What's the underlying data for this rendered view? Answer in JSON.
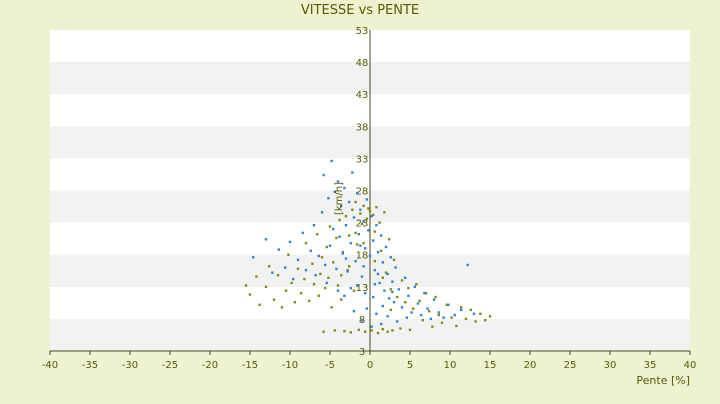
{
  "chart_data": {
    "type": "scatter",
    "title": "VITESSE vs PENTE",
    "xlabel": "Pente [%]",
    "ylabel": "[km/h]",
    "xlim": [
      -40,
      40
    ],
    "ylim": [
      3,
      53
    ],
    "x_ticks": [
      -40,
      -35,
      -30,
      -25,
      -20,
      -15,
      -10,
      -5,
      0,
      5,
      10,
      15,
      20,
      25,
      30,
      35,
      40
    ],
    "y_ticks": [
      3,
      8,
      13,
      18,
      23,
      28,
      33,
      38,
      43,
      48,
      53
    ],
    "grid": "horizontal bands",
    "colors": {
      "background": "#eef2d0",
      "plot_band_light": "#ffffff",
      "plot_band_dark": "#f2f2f2",
      "text": "#5a5a00",
      "axis": "#4a4a1a",
      "series_blue": "#2f86d6",
      "series_olive": "#8a8a10"
    },
    "series": [
      {
        "color": "#8a8a10",
        "marker": "dot",
        "points": [
          [
            -15.5,
            13.2
          ],
          [
            -15.0,
            11.8
          ],
          [
            -14.2,
            14.6
          ],
          [
            -13.8,
            10.2
          ],
          [
            -13.0,
            13.0
          ],
          [
            -12.6,
            16.2
          ],
          [
            -12.0,
            11.0
          ],
          [
            -11.5,
            14.8
          ],
          [
            -11.0,
            9.8
          ],
          [
            -10.5,
            12.4
          ],
          [
            -10.2,
            18.0
          ],
          [
            -9.8,
            13.6
          ],
          [
            -9.4,
            10.6
          ],
          [
            -9.0,
            15.8
          ],
          [
            -8.6,
            12.0
          ],
          [
            -8.2,
            14.2
          ],
          [
            -8.0,
            19.8
          ],
          [
            -7.6,
            10.8
          ],
          [
            -7.2,
            16.6
          ],
          [
            -7.0,
            13.4
          ],
          [
            -6.6,
            21.2
          ],
          [
            -6.4,
            11.6
          ],
          [
            -6.2,
            15.0
          ],
          [
            -6.0,
            17.6
          ],
          [
            -5.8,
            6.0
          ],
          [
            -5.6,
            12.8
          ],
          [
            -5.4,
            19.2
          ],
          [
            -5.2,
            14.4
          ],
          [
            -5.0,
            22.4
          ],
          [
            -4.8,
            9.8
          ],
          [
            -4.6,
            16.8
          ],
          [
            -4.4,
            6.2
          ],
          [
            -4.2,
            20.6
          ],
          [
            -4.0,
            13.2
          ],
          [
            -3.8,
            23.4
          ],
          [
            -3.6,
            11.0
          ],
          [
            -3.4,
            18.4
          ],
          [
            -3.2,
            6.1
          ],
          [
            -3.0,
            24.0
          ],
          [
            -2.8,
            15.6
          ],
          [
            -2.6,
            21.0
          ],
          [
            -2.4,
            5.9
          ],
          [
            -2.2,
            25.0
          ],
          [
            -2.0,
            12.4
          ],
          [
            -1.8,
            26.2
          ],
          [
            -1.6,
            19.6
          ],
          [
            -1.4,
            6.3
          ],
          [
            -1.2,
            24.4
          ],
          [
            -1.0,
            22.8
          ],
          [
            -0.8,
            25.6
          ],
          [
            -0.6,
            6.0
          ],
          [
            -0.4,
            23.6
          ],
          [
            -0.2,
            25.2
          ],
          [
            0.0,
            24.8
          ],
          [
            0.2,
            6.2
          ],
          [
            0.4,
            24.2
          ],
          [
            0.6,
            21.6
          ],
          [
            0.8,
            25.4
          ],
          [
            1.0,
            5.8
          ],
          [
            1.2,
            23.0
          ],
          [
            1.4,
            18.6
          ],
          [
            1.6,
            6.4
          ],
          [
            1.8,
            24.6
          ],
          [
            2.0,
            15.2
          ],
          [
            2.2,
            6.0
          ],
          [
            2.4,
            20.4
          ],
          [
            2.6,
            12.6
          ],
          [
            2.8,
            6.2
          ],
          [
            3.0,
            17.2
          ],
          [
            3.4,
            11.4
          ],
          [
            3.8,
            6.5
          ],
          [
            4.0,
            14.0
          ],
          [
            4.4,
            10.6
          ],
          [
            4.8,
            12.8
          ],
          [
            5.0,
            6.3
          ],
          [
            5.4,
            9.6
          ],
          [
            5.8,
            13.4
          ],
          [
            6.2,
            10.8
          ],
          [
            6.6,
            7.8
          ],
          [
            7.0,
            12.0
          ],
          [
            7.4,
            9.2
          ],
          [
            7.8,
            6.8
          ],
          [
            8.2,
            11.4
          ],
          [
            8.6,
            8.6
          ],
          [
            9.0,
            7.4
          ],
          [
            9.6,
            10.2
          ],
          [
            10.2,
            8.2
          ],
          [
            10.8,
            6.9
          ],
          [
            11.4,
            9.8
          ],
          [
            12.0,
            8.0
          ],
          [
            12.6,
            9.4
          ],
          [
            13.2,
            7.6
          ],
          [
            13.8,
            8.8
          ],
          [
            14.4,
            7.8
          ],
          [
            15.0,
            8.4
          ],
          [
            -1.8,
            21.4
          ],
          [
            -0.8,
            19.8
          ],
          [
            0.6,
            17.0
          ],
          [
            1.6,
            14.4
          ],
          [
            -2.6,
            16.2
          ],
          [
            2.6,
            9.4
          ],
          [
            -3.6,
            14.8
          ]
        ]
      },
      {
        "color": "#2f86d6",
        "marker": "dot",
        "points": [
          [
            -14.6,
            17.6
          ],
          [
            -13.0,
            20.4
          ],
          [
            -12.2,
            15.2
          ],
          [
            -11.4,
            18.8
          ],
          [
            -10.6,
            16.0
          ],
          [
            -10.0,
            20.0
          ],
          [
            -9.6,
            14.2
          ],
          [
            -9.0,
            17.2
          ],
          [
            -8.4,
            21.4
          ],
          [
            -8.0,
            15.6
          ],
          [
            -7.4,
            18.6
          ],
          [
            -7.0,
            22.6
          ],
          [
            -6.8,
            14.8
          ],
          [
            -6.4,
            17.8
          ],
          [
            -6.0,
            24.6
          ],
          [
            -5.8,
            30.4
          ],
          [
            -5.6,
            16.4
          ],
          [
            -5.2,
            26.8
          ],
          [
            -5.0,
            19.4
          ],
          [
            -4.8,
            32.6
          ],
          [
            -4.6,
            22.0
          ],
          [
            -4.4,
            27.8
          ],
          [
            -4.2,
            15.8
          ],
          [
            -4.0,
            29.4
          ],
          [
            -3.8,
            20.8
          ],
          [
            -3.6,
            25.6
          ],
          [
            -3.4,
            18.2
          ],
          [
            -3.2,
            28.4
          ],
          [
            -3.0,
            22.6
          ],
          [
            -2.8,
            15.4
          ],
          [
            -2.6,
            26.2
          ],
          [
            -2.4,
            19.8
          ],
          [
            -2.2,
            30.8
          ],
          [
            -2.0,
            23.8
          ],
          [
            -1.8,
            17.0
          ],
          [
            -1.6,
            27.6
          ],
          [
            -1.4,
            21.2
          ],
          [
            -1.2,
            25.0
          ],
          [
            -1.0,
            14.6
          ],
          [
            -0.8,
            23.2
          ],
          [
            -0.6,
            19.0
          ],
          [
            -0.4,
            26.6
          ],
          [
            -0.2,
            21.8
          ],
          [
            0.0,
            17.8
          ],
          [
            0.2,
            24.0
          ],
          [
            0.4,
            20.2
          ],
          [
            0.6,
            15.6
          ],
          [
            0.8,
            22.6
          ],
          [
            1.0,
            18.4
          ],
          [
            1.2,
            13.6
          ],
          [
            1.4,
            21.0
          ],
          [
            1.6,
            16.8
          ],
          [
            1.8,
            12.4
          ],
          [
            2.0,
            19.2
          ],
          [
            2.2,
            15.0
          ],
          [
            2.4,
            11.2
          ],
          [
            2.6,
            17.6
          ],
          [
            2.8,
            13.8
          ],
          [
            3.0,
            10.6
          ],
          [
            3.2,
            16.0
          ],
          [
            3.6,
            12.6
          ],
          [
            4.0,
            9.8
          ],
          [
            4.4,
            14.4
          ],
          [
            4.8,
            11.6
          ],
          [
            5.2,
            9.0
          ],
          [
            5.6,
            13.0
          ],
          [
            6.0,
            10.4
          ],
          [
            6.4,
            8.6
          ],
          [
            6.8,
            12.0
          ],
          [
            7.2,
            9.6
          ],
          [
            7.6,
            8.0
          ],
          [
            8.0,
            11.0
          ],
          [
            8.6,
            9.0
          ],
          [
            9.2,
            8.2
          ],
          [
            9.8,
            10.2
          ],
          [
            10.6,
            8.6
          ],
          [
            11.4,
            9.4
          ],
          [
            12.2,
            16.4
          ],
          [
            13.0,
            8.8
          ],
          [
            -0.6,
            12.0
          ],
          [
            0.4,
            11.4
          ],
          [
            -1.6,
            13.2
          ],
          [
            1.6,
            10.0
          ],
          [
            -2.4,
            12.8
          ],
          [
            0.8,
            8.8
          ],
          [
            -0.4,
            9.6
          ],
          [
            2.2,
            8.4
          ],
          [
            -1.0,
            7.8
          ],
          [
            0.2,
            6.8
          ],
          [
            1.4,
            7.2
          ],
          [
            -2.0,
            9.2
          ],
          [
            3.4,
            7.6
          ],
          [
            -3.2,
            11.6
          ],
          [
            4.6,
            8.2
          ],
          [
            -0.8,
            16.2
          ],
          [
            0.6,
            13.4
          ],
          [
            -1.2,
            19.4
          ],
          [
            1.0,
            15.0
          ],
          [
            -3.0,
            17.4
          ],
          [
            -4.0,
            12.4
          ],
          [
            2.8,
            12.2
          ],
          [
            -5.4,
            13.6
          ]
        ]
      }
    ]
  }
}
